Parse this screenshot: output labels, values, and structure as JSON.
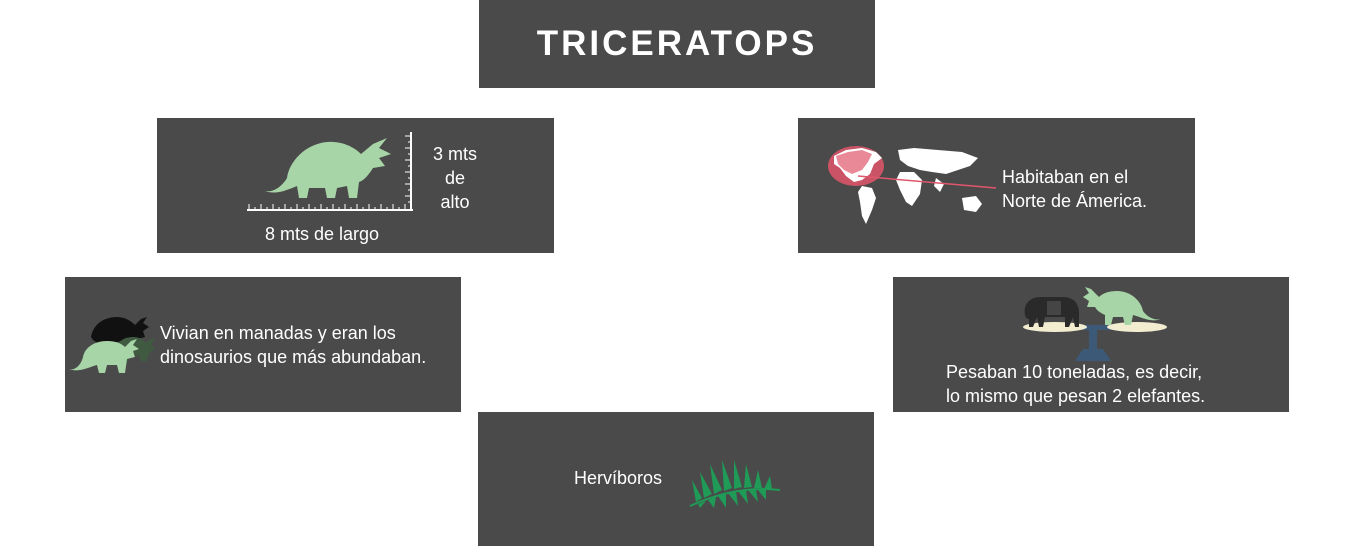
{
  "title": "TRICERATOPS",
  "size": {
    "height_lines": [
      "3 mts",
      "de",
      "alto"
    ],
    "length_label": "8 mts de largo"
  },
  "habitat": {
    "lines": [
      "Habitaban en el",
      "Norte de Ámerica."
    ]
  },
  "herd": {
    "lines": [
      "Vivian en manadas y eran los",
      "dinosaurios que más abundaban."
    ]
  },
  "weight": {
    "lines": [
      "Pesaban 10 toneladas, es decir,",
      "lo mismo que pesan 2 elefantes."
    ]
  },
  "diet": {
    "label": "Hervíboros"
  },
  "colors": {
    "panel": "#4a4a4a",
    "dino_green": "#a8d5a8",
    "fern_green": "#1f9a57",
    "map_highlight": "#e0566b"
  },
  "icons": [
    "triceratops-icon",
    "ruler-icon",
    "world-map-icon",
    "herd-icon",
    "scale-icon",
    "elephant-icon",
    "fern-icon"
  ]
}
